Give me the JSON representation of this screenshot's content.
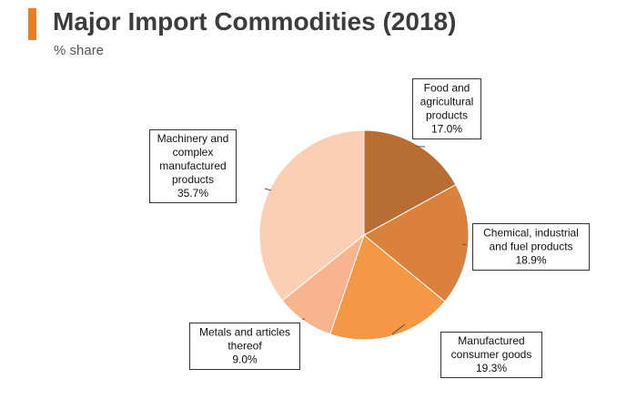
{
  "colors": {
    "accent": "#F07C1B"
  },
  "header": {
    "title": "Major Import Commodities (2018)",
    "subtitle": "% share"
  },
  "chart_data": {
    "type": "pie",
    "title": "Major Import Commodities (2018)",
    "subtitle": "% share",
    "unit": "%",
    "start": "12 o'clock",
    "direction": "clockwise",
    "slices": [
      {
        "name": "Food and agricultural products",
        "label_lines": [
          "Food and",
          "agricultural",
          "products"
        ],
        "value": 17.0,
        "value_label": "17.0%",
        "color": "#B86E32"
      },
      {
        "name": "Chemical, industrial and fuel products",
        "label_lines": [
          "Chemical, industrial",
          "and fuel products"
        ],
        "value": 18.9,
        "value_label": "18.9%",
        "color": "#DA813E"
      },
      {
        "name": "Manufactured consumer goods",
        "label_lines": [
          "Manufactured",
          "consumer goods"
        ],
        "value": 19.3,
        "value_label": "19.3%",
        "color": "#F49845"
      },
      {
        "name": "Metals and articles thereof",
        "label_lines": [
          "Metals and articles",
          "thereof"
        ],
        "value": 9.0,
        "value_label": "9.0%",
        "color": "#F8B48E"
      },
      {
        "name": "Machinery and complex manufactured products",
        "label_lines": [
          "Machinery and",
          "complex",
          "manufactured",
          "products"
        ],
        "value": 35.7,
        "value_label": "35.7%",
        "color": "#FCCFB5"
      }
    ]
  }
}
